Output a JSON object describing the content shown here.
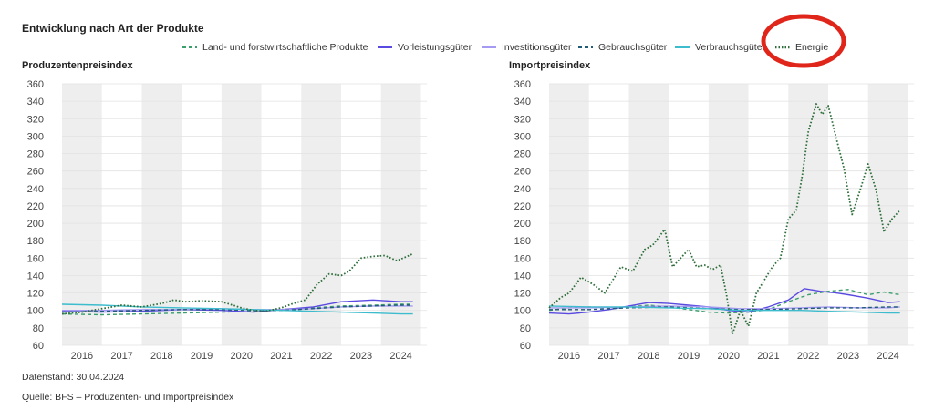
{
  "title": "Entwicklung nach Art der Produkte",
  "legend": [
    {
      "label": "Land- und forstwirtschaftliche Produkte",
      "color": "#3a9e6d",
      "dash": "dashed"
    },
    {
      "label": "Vorleistungsgüter",
      "color": "#5a4be0",
      "dash": "solid"
    },
    {
      "label": "Investitionsgüter",
      "color": "#a49af2",
      "dash": "solid"
    },
    {
      "label": "Gebrauchsgüter",
      "color": "#1f5a78",
      "dash": "dashed"
    },
    {
      "label": "Verbrauchsgüter",
      "color": "#3cbccc",
      "dash": "solid"
    },
    {
      "label": "Energie",
      "color": "#2e6e3a",
      "dash": "dotted"
    }
  ],
  "highlight_color": "#e0261b",
  "chart_data": [
    {
      "type": "line",
      "title": "Produzentenpreisindex",
      "ylim": [
        60,
        360
      ],
      "yticks": [
        60,
        80,
        100,
        120,
        140,
        160,
        180,
        200,
        220,
        240,
        260,
        280,
        300,
        320,
        340,
        360
      ],
      "xlim": [
        2015.5,
        2024.65
      ],
      "xticks": [
        "2016",
        "2017",
        "2018",
        "2019",
        "2020",
        "2021",
        "2022",
        "2023",
        "2024"
      ],
      "shaded_years": [
        "2016",
        "2018",
        "2020",
        "2022",
        "2024"
      ],
      "grid": true,
      "series": [
        {
          "name": "Land- und forstwirtschaftliche Produkte",
          "x": [
            2015.5,
            2016.5,
            2017.5,
            2018.5,
            2019.5,
            2020.3,
            2021.0,
            2021.8,
            2022.5,
            2023.3,
            2024.0,
            2024.3
          ],
          "values": [
            96,
            95,
            96,
            97,
            98,
            99,
            101,
            103,
            105,
            106,
            107,
            107
          ]
        },
        {
          "name": "Vorleistungsgüter",
          "x": [
            2015.5,
            2016.5,
            2017.5,
            2018.5,
            2019.5,
            2020.3,
            2021.0,
            2021.8,
            2022.5,
            2023.3,
            2024.0,
            2024.3
          ],
          "values": [
            99,
            98,
            99,
            101,
            100,
            98,
            101,
            104,
            110,
            112,
            110,
            110
          ]
        },
        {
          "name": "Investitionsgüter",
          "x": [
            2015.5,
            2016.5,
            2017.5,
            2018.5,
            2019.5,
            2020.3,
            2021.0,
            2021.8,
            2022.5,
            2023.3,
            2024.0,
            2024.3
          ],
          "values": [
            100,
            100,
            101,
            101,
            102,
            101,
            101,
            102,
            104,
            105,
            105,
            105
          ]
        },
        {
          "name": "Gebrauchsgüter",
          "x": [
            2015.5,
            2016.5,
            2017.5,
            2018.5,
            2019.5,
            2020.3,
            2021.0,
            2021.8,
            2022.5,
            2023.3,
            2024.0,
            2024.3
          ],
          "values": [
            98,
            99,
            100,
            101,
            101,
            100,
            100,
            102,
            104,
            105,
            106,
            106
          ]
        },
        {
          "name": "Verbrauchsgüter",
          "x": [
            2015.5,
            2016.5,
            2017.5,
            2018.5,
            2019.5,
            2020.3,
            2021.0,
            2021.8,
            2022.5,
            2023.3,
            2024.0,
            2024.3
          ],
          "values": [
            107,
            106,
            104,
            103,
            102,
            101,
            100,
            99,
            98,
            97,
            96,
            96
          ]
        },
        {
          "name": "Energie",
          "x": [
            2015.5,
            2016.0,
            2016.5,
            2017.0,
            2017.5,
            2018.0,
            2018.3,
            2018.6,
            2019.0,
            2019.5,
            2020.0,
            2020.3,
            2020.6,
            2021.0,
            2021.3,
            2021.6,
            2021.9,
            2022.2,
            2022.5,
            2022.7,
            2023.0,
            2023.3,
            2023.6,
            2023.9,
            2024.1,
            2024.3
          ],
          "values": [
            96,
            98,
            102,
            106,
            104,
            108,
            112,
            110,
            111,
            110,
            103,
            100,
            99,
            103,
            108,
            112,
            130,
            142,
            140,
            145,
            160,
            162,
            163,
            157,
            161,
            165
          ]
        }
      ]
    },
    {
      "type": "line",
      "title": "Importpreisindex",
      "ylim": [
        60,
        360
      ],
      "yticks": [
        60,
        80,
        100,
        120,
        140,
        160,
        180,
        200,
        220,
        240,
        260,
        280,
        300,
        320,
        340,
        360
      ],
      "xlim": [
        2015.5,
        2024.65
      ],
      "xticks": [
        "2016",
        "2017",
        "2018",
        "2019",
        "2020",
        "2021",
        "2022",
        "2023",
        "2024"
      ],
      "shaded_years": [
        "2016",
        "2018",
        "2020",
        "2022",
        "2024"
      ],
      "grid": true,
      "series": [
        {
          "name": "Land- und forstwirtschaftliche Produkte",
          "x": [
            2015.5,
            2016.0,
            2016.5,
            2017.0,
            2017.5,
            2018.0,
            2018.5,
            2019.0,
            2019.5,
            2020.0,
            2020.5,
            2021.0,
            2021.5,
            2022.0,
            2022.5,
            2023.0,
            2023.5,
            2023.9,
            2024.3
          ],
          "values": [
            100,
            103,
            104,
            103,
            104,
            106,
            104,
            101,
            98,
            97,
            98,
            101,
            110,
            118,
            122,
            124,
            118,
            121,
            118
          ]
        },
        {
          "name": "Vorleistungsgüter",
          "x": [
            2015.5,
            2016.0,
            2016.5,
            2017.0,
            2017.5,
            2018.0,
            2018.5,
            2019.0,
            2019.5,
            2020.0,
            2020.5,
            2021.0,
            2021.5,
            2021.9,
            2022.3,
            2022.7,
            2023.0,
            2023.5,
            2024.0,
            2024.3
          ],
          "values": [
            97,
            96,
            98,
            101,
            105,
            109,
            108,
            106,
            104,
            100,
            98,
            104,
            112,
            125,
            122,
            120,
            118,
            114,
            109,
            110
          ]
        },
        {
          "name": "Investitionsgüter",
          "x": [
            2015.5,
            2016.5,
            2017.5,
            2018.5,
            2019.5,
            2020.3,
            2021.0,
            2021.8,
            2022.5,
            2023.3,
            2024.0,
            2024.3
          ],
          "values": [
            103,
            103,
            104,
            105,
            104,
            102,
            102,
            103,
            104,
            103,
            103,
            104
          ]
        },
        {
          "name": "Gebrauchsgüter",
          "x": [
            2015.5,
            2016.5,
            2017.5,
            2018.5,
            2019.5,
            2020.3,
            2021.0,
            2021.8,
            2022.5,
            2023.3,
            2024.0,
            2024.3
          ],
          "values": [
            101,
            101,
            103,
            104,
            102,
            101,
            101,
            102,
            103,
            103,
            104,
            104
          ]
        },
        {
          "name": "Verbrauchsgüter",
          "x": [
            2015.5,
            2016.5,
            2017.5,
            2018.5,
            2019.5,
            2020.3,
            2021.0,
            2021.8,
            2022.5,
            2023.3,
            2024.0,
            2024.3
          ],
          "values": [
            105,
            104,
            104,
            103,
            102,
            100,
            100,
            100,
            99,
            98,
            97,
            97
          ]
        },
        {
          "name": "Energie",
          "x": [
            2015.5,
            2015.8,
            2016.0,
            2016.3,
            2016.6,
            2016.9,
            2017.1,
            2017.3,
            2017.6,
            2017.9,
            2018.1,
            2018.4,
            2018.6,
            2018.8,
            2019.0,
            2019.2,
            2019.4,
            2019.6,
            2019.8,
            2019.95,
            2020.1,
            2020.3,
            2020.5,
            2020.7,
            2020.9,
            2021.1,
            2021.3,
            2021.5,
            2021.7,
            2021.85,
            2022.0,
            2022.2,
            2022.35,
            2022.5,
            2022.7,
            2022.9,
            2023.1,
            2023.3,
            2023.5,
            2023.7,
            2023.9,
            2024.1,
            2024.3
          ],
          "values": [
            103,
            115,
            120,
            138,
            130,
            120,
            135,
            150,
            145,
            170,
            175,
            193,
            150,
            160,
            170,
            150,
            152,
            147,
            152,
            118,
            73,
            100,
            82,
            120,
            135,
            150,
            160,
            205,
            215,
            255,
            305,
            337,
            325,
            335,
            298,
            262,
            210,
            238,
            268,
            238,
            190,
            205,
            215
          ]
        }
      ]
    }
  ],
  "footer": {
    "datenstand": "Datenstand: 30.04.2024",
    "quelle": "Quelle: BFS – Produzenten- und Importpreisindex"
  }
}
